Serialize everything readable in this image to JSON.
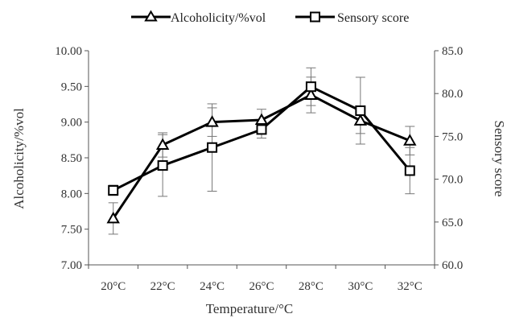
{
  "chart_data": {
    "type": "line",
    "xlabel": "Temperature/°C",
    "ylabel_left": "Alcoholicity/%vol",
    "ylabel_right": "Sensory score",
    "categories": [
      "20°C",
      "22°C",
      "24°C",
      "26°C",
      "28°C",
      "30°C",
      "32°C"
    ],
    "ylim_left": [
      7.0,
      10.0
    ],
    "ylim_right": [
      60.0,
      85.0
    ],
    "yticks_left": [
      "7.00",
      "7.50",
      "8.00",
      "8.50",
      "9.00",
      "9.50",
      "10.00"
    ],
    "yticks_right": [
      "60.0",
      "65.0",
      "70.0",
      "75.0",
      "80.0",
      "85.0"
    ],
    "legend_position": "top",
    "series": [
      {
        "name": "Alcoholicity/%vol",
        "axis": "left",
        "marker": "triangle",
        "values": [
          7.65,
          8.68,
          9.0,
          9.03,
          9.38,
          9.02,
          8.74
        ],
        "errors": [
          0.22,
          0.17,
          0.2,
          0.15,
          0.25,
          0.18,
          0.2
        ],
        "color": "#000000"
      },
      {
        "name": "Sensory score",
        "axis": "right",
        "marker": "square",
        "values": [
          68.7,
          71.6,
          73.7,
          75.8,
          80.8,
          78.0,
          71.0
        ],
        "errors": [
          0.6,
          3.6,
          5.1,
          1.0,
          2.2,
          3.9,
          2.7
        ],
        "color": "#000000"
      }
    ]
  }
}
